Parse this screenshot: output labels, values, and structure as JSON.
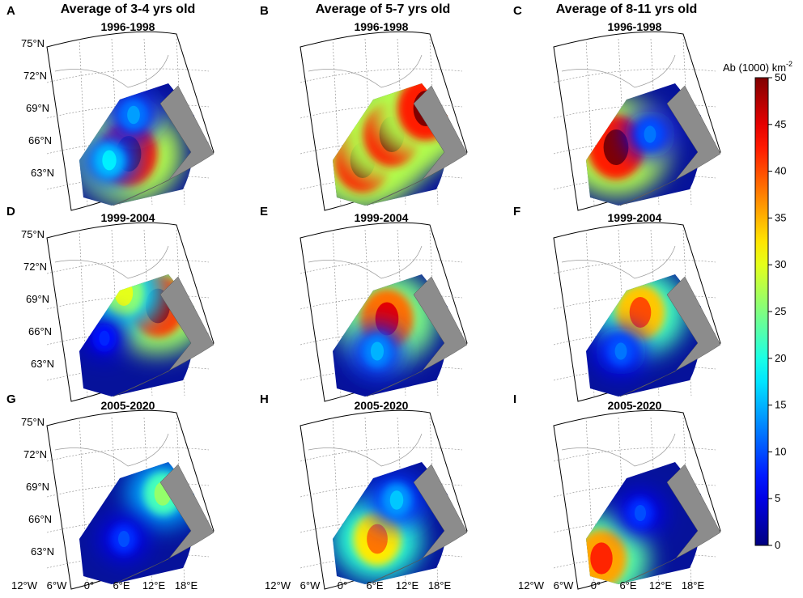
{
  "figure": {
    "latitude_labels": [
      "75°N",
      "72°N",
      "69°N",
      "66°N",
      "63°N"
    ],
    "longitude_labels": [
      "12°W",
      "6°W",
      "0°",
      "6°E",
      "12°E",
      "18°E"
    ],
    "colorbar": {
      "title": "Ab (1000) km",
      "title_superscript": "-2",
      "range": [
        0,
        50
      ],
      "ticks": [
        "0",
        "5",
        "10",
        "15",
        "20",
        "25",
        "30",
        "35",
        "40",
        "45",
        "50"
      ]
    }
  },
  "chart_data": {
    "type": "heatmap",
    "colormap": "jet",
    "value_range": [
      0,
      50
    ],
    "units": "Ab (1000) km^-2",
    "columns": [
      {
        "title": "Average of 3-4 yrs old"
      },
      {
        "title": "Average of 5-7 yrs old"
      },
      {
        "title": "Average of 8-11 yrs old"
      }
    ],
    "panels": [
      {
        "letter": "A",
        "period": "1996-1998",
        "row": 0,
        "col": 0,
        "hotspots": [
          {
            "lon": 1,
            "lat": 66.5,
            "value": 50
          },
          {
            "lon": -3,
            "lat": 66,
            "value": 18
          },
          {
            "lon": 2,
            "lat": 69.5,
            "value": 14
          }
        ]
      },
      {
        "letter": "B",
        "period": "1996-1998",
        "row": 0,
        "col": 1,
        "hotspots": [
          {
            "lon": -3,
            "lat": 66,
            "value": 50
          },
          {
            "lon": 3,
            "lat": 68,
            "value": 50
          },
          {
            "lon": 10,
            "lat": 70,
            "value": 50
          }
        ]
      },
      {
        "letter": "C",
        "period": "1996-1998",
        "row": 0,
        "col": 2,
        "hotspots": [
          {
            "lon": -3,
            "lat": 67,
            "value": 50
          },
          {
            "lon": 4,
            "lat": 68,
            "value": 12
          }
        ]
      },
      {
        "letter": "D",
        "period": "1999-2004",
        "row": 1,
        "col": 0,
        "hotspots": [
          {
            "lon": 7,
            "lat": 69.5,
            "value": 48
          },
          {
            "lon": 0,
            "lat": 70.5,
            "value": 30
          },
          {
            "lon": -4,
            "lat": 67,
            "value": 8
          }
        ]
      },
      {
        "letter": "E",
        "period": "1999-2004",
        "row": 1,
        "col": 1,
        "hotspots": [
          {
            "lon": 2,
            "lat": 68.5,
            "value": 45
          },
          {
            "lon": 0,
            "lat": 66,
            "value": 15
          }
        ]
      },
      {
        "letter": "F",
        "period": "1999-2004",
        "row": 1,
        "col": 2,
        "hotspots": [
          {
            "lon": 2,
            "lat": 69,
            "value": 40
          },
          {
            "lon": -2,
            "lat": 66,
            "value": 12
          }
        ]
      },
      {
        "letter": "G",
        "period": "2005-2020",
        "row": 2,
        "col": 0,
        "hotspots": [
          {
            "lon": 8,
            "lat": 69.5,
            "value": 26
          },
          {
            "lon": 0,
            "lat": 66,
            "value": 10
          }
        ]
      },
      {
        "letter": "H",
        "period": "2005-2020",
        "row": 2,
        "col": 1,
        "hotspots": [
          {
            "lon": 0,
            "lat": 66,
            "value": 38
          },
          {
            "lon": 4,
            "lat": 69,
            "value": 16
          }
        ]
      },
      {
        "letter": "I",
        "period": "2005-2020",
        "row": 2,
        "col": 2,
        "hotspots": [
          {
            "lon": -6,
            "lat": 64.5,
            "value": 42
          },
          {
            "lon": 2,
            "lat": 68,
            "value": 10
          }
        ]
      }
    ]
  }
}
